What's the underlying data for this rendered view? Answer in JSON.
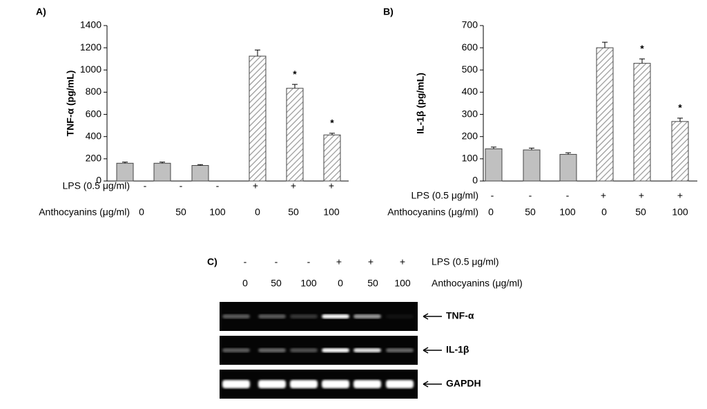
{
  "chart_data": [
    {
      "type": "bar",
      "panel": "A)",
      "ylabel": "TNF-α (pg/mL)",
      "ylim": [
        0,
        1400
      ],
      "yticks": [
        0,
        200,
        400,
        600,
        800,
        1000,
        1200,
        1400
      ],
      "values": [
        160,
        160,
        140,
        1125,
        835,
        415
      ],
      "errors": [
        10,
        10,
        8,
        55,
        35,
        15
      ],
      "color": "#c0c0c0",
      "hatched": [
        false,
        false,
        false,
        true,
        true,
        true
      ],
      "annotations": [
        null,
        null,
        null,
        null,
        "*",
        "*"
      ],
      "conditions": [
        {
          "label": "LPS (0.5 μg/ml)",
          "values": [
            "-",
            "-",
            "-",
            "+",
            "+",
            "+"
          ]
        },
        {
          "label": "Anthocyanins (μg/ml)",
          "values": [
            "0",
            "50",
            "100",
            "0",
            "50",
            "100"
          ]
        }
      ]
    },
    {
      "type": "bar",
      "panel": "B)",
      "ylabel": "IL-1β (pg/mL)",
      "ylim": [
        0,
        700
      ],
      "yticks": [
        0,
        100,
        200,
        300,
        400,
        500,
        600,
        700
      ],
      "values": [
        145,
        140,
        120,
        600,
        530,
        268
      ],
      "errors": [
        8,
        8,
        7,
        25,
        20,
        15
      ],
      "color": "#c0c0c0",
      "hatched": [
        false,
        false,
        false,
        true,
        true,
        true
      ],
      "annotations": [
        null,
        null,
        null,
        null,
        "*",
        "*"
      ],
      "conditions": [
        {
          "label": "LPS (0.5 μg/ml)",
          "values": [
            "-",
            "-",
            "-",
            "+",
            "+",
            "+"
          ]
        },
        {
          "label": "Anthocyanins (μg/ml)",
          "values": [
            "0",
            "50",
            "100",
            "0",
            "50",
            "100"
          ]
        }
      ]
    }
  ],
  "gel": {
    "label": "C)",
    "conditions": [
      {
        "label": "LPS (0.5 μg/ml)",
        "values": [
          "-",
          "-",
          "-",
          "+",
          "+",
          "+"
        ]
      },
      {
        "label": "Anthocyanins (μg/ml)",
        "values": [
          "0",
          "50",
          "100",
          "0",
          "50",
          "100"
        ]
      }
    ],
    "bands": [
      {
        "name": "TNF-α",
        "intensities": [
          0.35,
          0.35,
          0.2,
          1,
          0.6,
          0.05
        ]
      },
      {
        "name": "IL-1β",
        "intensities": [
          0.35,
          0.4,
          0.3,
          1,
          0.9,
          0.4
        ]
      },
      {
        "name": "GAPDH",
        "intensities": [
          1,
          1,
          1,
          1,
          1,
          1
        ]
      }
    ]
  }
}
